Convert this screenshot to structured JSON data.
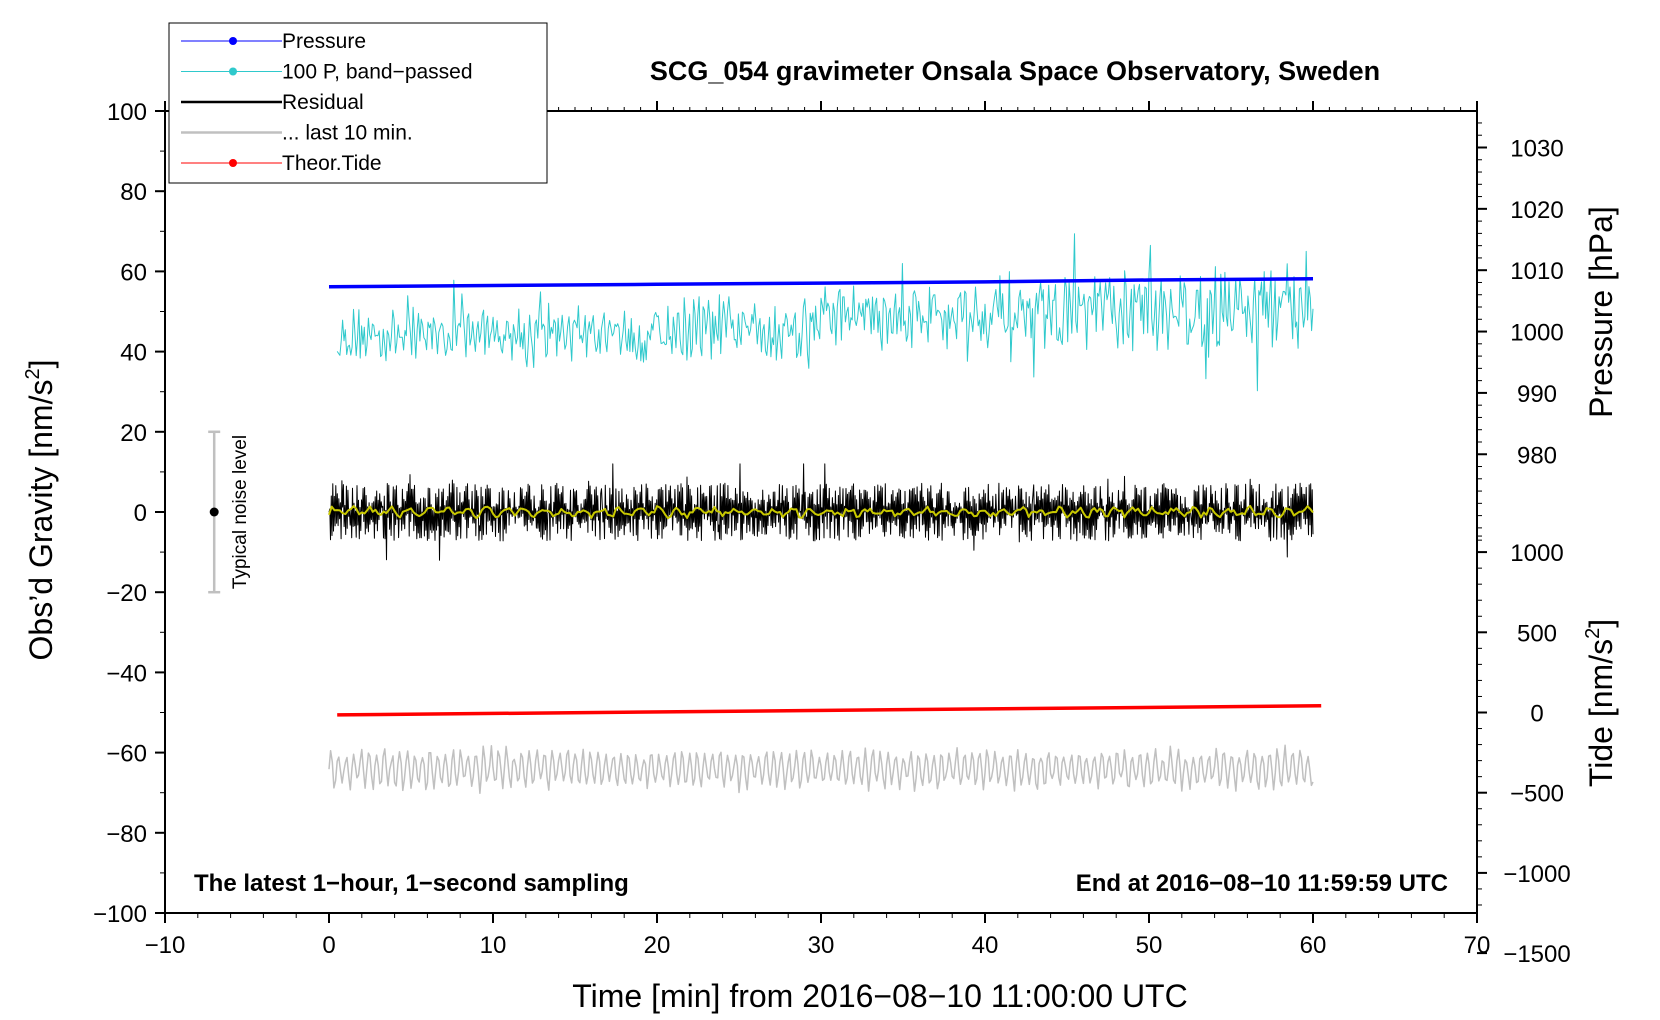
{
  "chart_data": {
    "type": "line",
    "title": "SCG_054 gravimeter Onsala Space Observatory, Sweden",
    "xlabel": "Time [min] from 2016−08−10 11:00:00 UTC",
    "ylabel_left": "Obs’d Gravity [nm/s",
    "ylabel_left_sup": "2",
    "ylabel_left_close": "]",
    "ylabel_right_pressure": "Pressure [hPa]",
    "ylabel_right_tide": "Tide [nm/s",
    "ylabel_right_tide_sup": "2",
    "ylabel_right_tide_close": "]",
    "xlim": [
      -10,
      70
    ],
    "ylim": [
      -100,
      100
    ],
    "xticks": [
      {
        "v": -10,
        "label": "−10"
      },
      {
        "v": 0,
        "label": "0"
      },
      {
        "v": 10,
        "label": "10"
      },
      {
        "v": 20,
        "label": "20"
      },
      {
        "v": 30,
        "label": "30"
      },
      {
        "v": 40,
        "label": "40"
      },
      {
        "v": 50,
        "label": "50"
      },
      {
        "v": 60,
        "label": "60"
      },
      {
        "v": 70,
        "label": "70"
      }
    ],
    "yticks": [
      {
        "v": 100,
        "label": "100"
      },
      {
        "v": 80,
        "label": "80"
      },
      {
        "v": 60,
        "label": "60"
      },
      {
        "v": 40,
        "label": "40"
      },
      {
        "v": 20,
        "label": "20"
      },
      {
        "v": 0,
        "label": "0"
      },
      {
        "v": -20,
        "label": "−20"
      },
      {
        "v": -40,
        "label": "−40"
      },
      {
        "v": -60,
        "label": "−60"
      },
      {
        "v": -80,
        "label": "−80"
      },
      {
        "v": -100,
        "label": "−100"
      }
    ],
    "pressure_axis": {
      "ticks": [
        {
          "v": 1030,
          "label": "1030"
        },
        {
          "v": 1020,
          "label": "1020"
        },
        {
          "v": 1010,
          "label": "1010"
        },
        {
          "v": 1000,
          "label": "1000"
        },
        {
          "v": 990,
          "label": "990"
        },
        {
          "v": 980,
          "label": "980"
        }
      ],
      "gravity_at_1000": 45.0,
      "gravity_per_hPa": 1.53
    },
    "tide_axis": {
      "ticks": [
        {
          "v": 1000,
          "label": "1000"
        },
        {
          "v": 500,
          "label": "500"
        },
        {
          "v": 0,
          "label": "0"
        },
        {
          "v": -500,
          "label": "−500"
        },
        {
          "v": -1000,
          "label": "−1000"
        },
        {
          "v": -1500,
          "label": "−1500"
        }
      ],
      "gravity_at_0": -50.0,
      "gravity_per_unit": 0.04
    },
    "series": [
      {
        "name": "Pressure",
        "color": "#0000ff",
        "x": [
          0,
          10,
          20,
          30,
          40,
          50,
          60
        ],
        "y": [
          1007.3,
          1007.5,
          1007.7,
          1007.9,
          1008.1,
          1008.4,
          1008.6
        ]
      },
      {
        "name": "100 P, band−passed",
        "color": "#2fc9cc",
        "x_range": [
          0.5,
          60
        ],
        "center": [
          44,
          48
        ],
        "amplitude": [
          7,
          12
        ]
      },
      {
        "name": "Residual",
        "color": "#000000",
        "x_range": [
          0,
          60
        ],
        "center": 0,
        "amplitude": 8
      },
      {
        "name": "... last 10 min.",
        "color": "#c0c0c0",
        "x_range": [
          0,
          60
        ],
        "center": -64,
        "amplitude": 5
      },
      {
        "name": "Theor.Tide",
        "color": "#ff0000",
        "x": [
          0.5,
          60.5
        ],
        "y": [
          -15,
          42
        ]
      },
      {
        "name": "Smoothed residual",
        "color": "#c8c800",
        "x_range": [
          0,
          60
        ],
        "center": 0
      }
    ],
    "legend": [
      {
        "label": "Pressure",
        "color": "#0000ff",
        "marker": true,
        "width": 1
      },
      {
        "label": "100 P, band−passed",
        "color": "#2fc9cc",
        "marker": true,
        "width": 1
      },
      {
        "label": "Residual",
        "color": "#000000",
        "marker": false,
        "width": 2.5
      },
      {
        "label": "... last 10 min.",
        "color": "#c0c0c0",
        "marker": false,
        "width": 2.5
      },
      {
        "label": "Theor.Tide",
        "color": "#ff0000",
        "marker": true,
        "width": 1
      }
    ],
    "legend_position": "top-left",
    "noise_bar": {
      "x": -7,
      "center": 0,
      "half_range": 20,
      "label": "Typical noise level"
    },
    "annotation_left": "The latest 1−hour, 1−second sampling",
    "annotation_right": "End at 2016−08−10 11:59:59 UTC"
  }
}
